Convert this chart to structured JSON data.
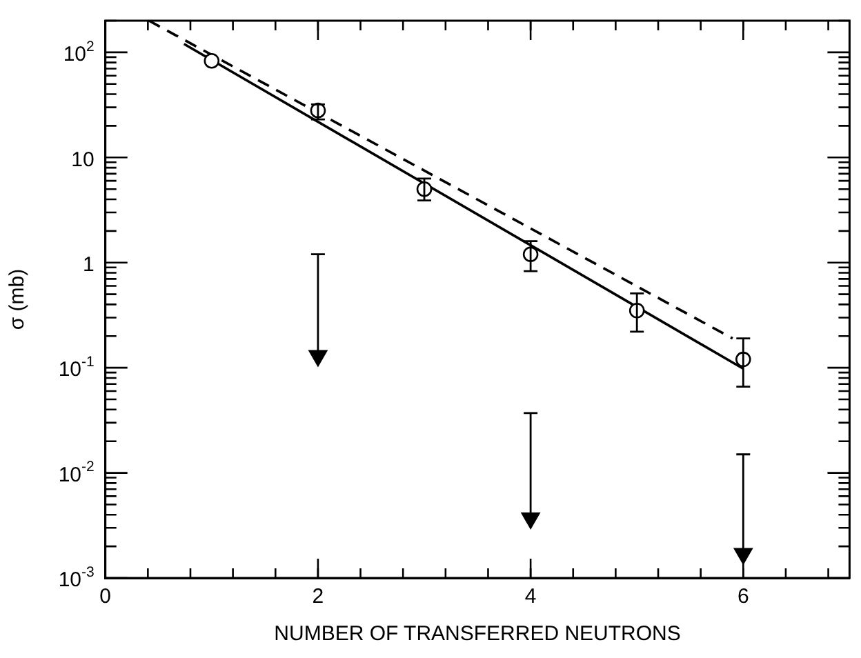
{
  "chart_data": {
    "type": "scatter",
    "xlabel": "NUMBER OF TRANSFERRED NEUTRONS",
    "ylabel": "σ (mb)",
    "log": "y",
    "grid": false,
    "legend": false,
    "xlim": [
      0,
      7
    ],
    "xticks": [
      0,
      2,
      4,
      6
    ],
    "ylim": [
      0.001,
      200
    ],
    "yticks": [
      {
        "value": 0.001,
        "label": "10$^{-3}$"
      },
      {
        "value": 0.01,
        "label": "10$^{-2}$"
      },
      {
        "value": 0.1,
        "label": "10$^{-1}$"
      },
      1,
      10,
      {
        "value": 100,
        "label": "10$^{2}$"
      }
    ],
    "series": [
      {
        "type": "scatter",
        "color": "#000000",
        "marker": "circle",
        "x": [
          1,
          2,
          3,
          4,
          5,
          6
        ],
        "values": [
          83,
          28,
          5.0,
          1.2,
          0.35,
          0.12
        ],
        "errors": [
          null,
          [
            23,
            32
          ],
          [
            3.9,
            6.3
          ],
          [
            0.83,
            1.6
          ],
          [
            0.22,
            0.51
          ],
          [
            0.066,
            0.19
          ]
        ]
      },
      {
        "type": "scatter",
        "color": "#000000",
        "marker": "triangle",
        "x": [
          2,
          4,
          6
        ],
        "values": [
          0.13,
          0.0037,
          0.0017
        ],
        "errors": [
          [
            0.13,
            1.2
          ],
          [
            0.0037,
            0.037
          ],
          [
            0.0017,
            0.015
          ]
        ]
      },
      {
        "type": "line",
        "color": "#000000",
        "line_style": "solid",
        "x": [
          0.74,
          6
        ],
        "values": [
          120,
          0.098
        ]
      },
      {
        "type": "line",
        "color": "#000000",
        "line_style": "dashed",
        "x": [
          0.41,
          5.9
        ],
        "values": [
          200,
          0.19
        ]
      }
    ]
  }
}
